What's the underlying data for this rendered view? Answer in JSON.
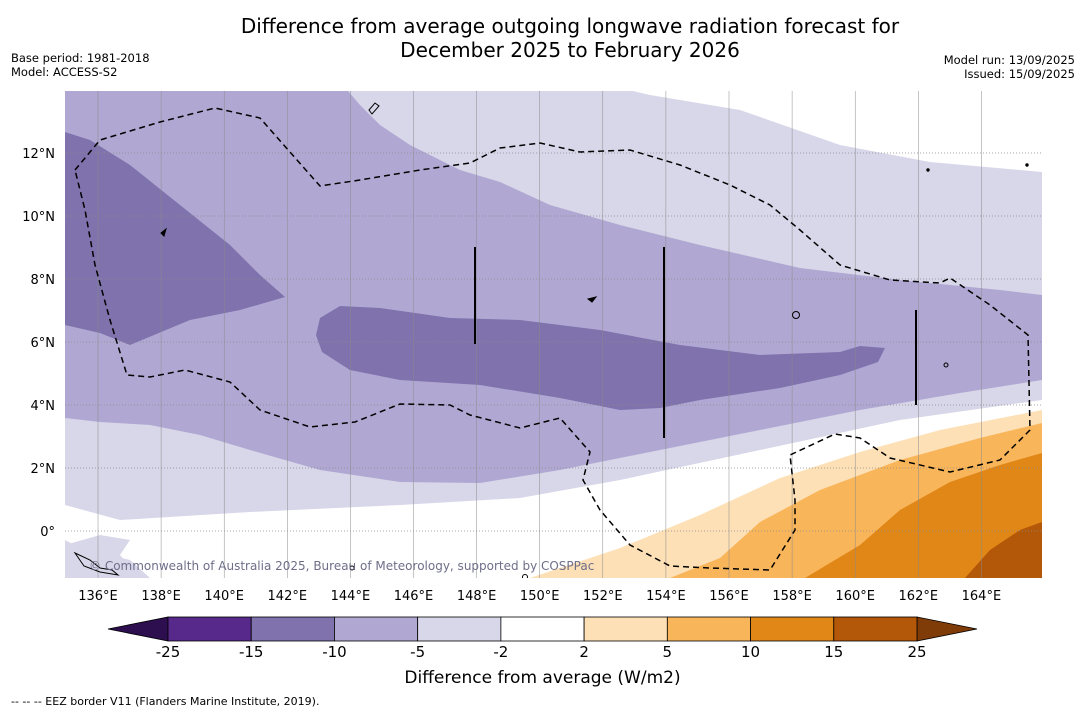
{
  "title_line1": "Difference from average outgoing longwave radiation forecast for",
  "title_line2": "December 2025 to February 2026",
  "base_period": "Base period: 1981-2018",
  "model": "Model: ACCESS-S2",
  "model_run": "Model run: 13/09/2025",
  "issued": "Issued: 15/09/2025",
  "copyright": "© Commonwealth of Australia 2025, Bureau of Meteorology, supported by COSPPac",
  "lon_labels": [
    "136°E",
    "138°E",
    "140°E",
    "142°E",
    "144°E",
    "146°E",
    "148°E",
    "150°E",
    "152°E",
    "154°E",
    "156°E",
    "158°E",
    "160°E",
    "162°E",
    "164°E"
  ],
  "lat_labels": [
    "12°N",
    "10°N",
    "8°N",
    "6°N",
    "4°N",
    "2°N",
    "0°"
  ],
  "colorbar": {
    "title": "Difference from average (W/m2)",
    "ticks": [
      "-25",
      "-15",
      "-10",
      "-5",
      "-2",
      "2",
      "5",
      "10",
      "15",
      "25"
    ],
    "colors": [
      "#56298a",
      "#7f72ad",
      "#b0a8d2",
      "#d7d7e9",
      "#ffffff",
      "#fde0b6",
      "#f9b55a",
      "#e08718",
      "#b35708"
    ],
    "under_color": "#2d0e4f",
    "over_color": "#7f3b08"
  },
  "legend_footnote": "--  --  -- EEZ border V11 (Flanders Marine Institute, 2019)."
}
